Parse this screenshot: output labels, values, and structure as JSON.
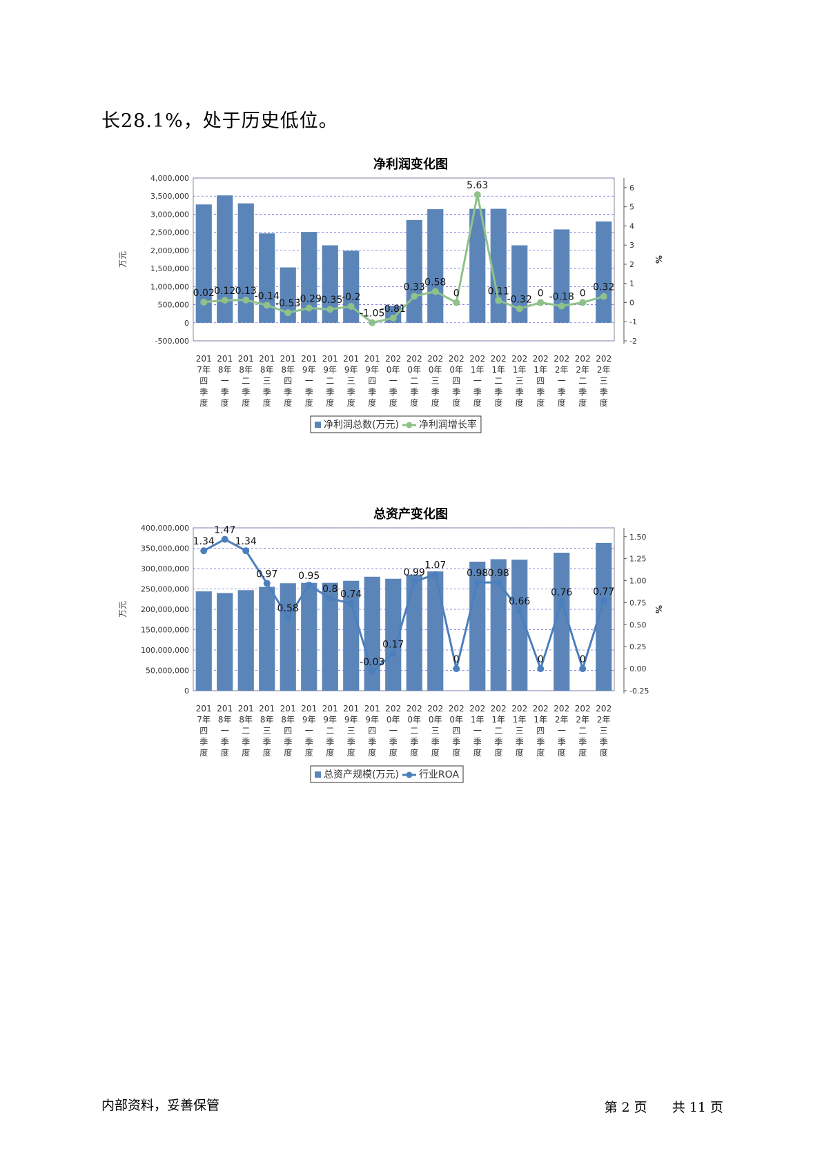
{
  "document": {
    "intro_text": "长28.1%，处于历史低位。",
    "footer_left": "内部资料，妥善保管",
    "footer_page_prefix": "第",
    "footer_page_num": "2",
    "footer_page_unit": "页",
    "footer_total_prefix": "共",
    "footer_total_num": "11",
    "footer_total_unit": "页"
  },
  "colors": {
    "bar": "#5b85b8",
    "line1": "#8fc18a",
    "line2": "#4c7fbd",
    "grid": "#6a6ae0"
  },
  "chart_data": [
    {
      "type": "bar+line",
      "title": "净利润变化图",
      "ylabel_left": "万元",
      "ylabel_right": "%",
      "categories": [
        [
          "201",
          "7年",
          "四",
          "季",
          "度"
        ],
        [
          "201",
          "8年",
          "一",
          "季",
          "度"
        ],
        [
          "201",
          "8年",
          "二",
          "季",
          "度"
        ],
        [
          "201",
          "8年",
          "三",
          "季",
          "度"
        ],
        [
          "201",
          "8年",
          "四",
          "季",
          "度"
        ],
        [
          "201",
          "9年",
          "一",
          "季",
          "度"
        ],
        [
          "201",
          "9年",
          "二",
          "季",
          "度"
        ],
        [
          "201",
          "9年",
          "三",
          "季",
          "度"
        ],
        [
          "201",
          "9年",
          "四",
          "季",
          "度"
        ],
        [
          "202",
          "0年",
          "一",
          "季",
          "度"
        ],
        [
          "202",
          "0年",
          "二",
          "季",
          "度"
        ],
        [
          "202",
          "0年",
          "三",
          "季",
          "度"
        ],
        [
          "202",
          "0年",
          "四",
          "季",
          "度"
        ],
        [
          "202",
          "1年",
          "一",
          "季",
          "度"
        ],
        [
          "202",
          "1年",
          "二",
          "季",
          "度"
        ],
        [
          "202",
          "1年",
          "三",
          "季",
          "度"
        ],
        [
          "202",
          "1年",
          "四",
          "季",
          "度"
        ],
        [
          "202",
          "2年",
          "一",
          "季",
          "度"
        ],
        [
          "202",
          "2年",
          "二",
          "季",
          "度"
        ],
        [
          "202",
          "2年",
          "三",
          "季",
          "度"
        ]
      ],
      "series": [
        {
          "name": "净利润总数(万元)",
          "kind": "bar",
          "values": [
            3270000,
            3520000,
            3300000,
            2470000,
            1530000,
            2510000,
            2140000,
            1990000,
            null,
            470000,
            2840000,
            3140000,
            null,
            3150000,
            3150000,
            2140000,
            null,
            2580000,
            null,
            2800000
          ]
        },
        {
          "name": "净利润增长率",
          "kind": "line",
          "values": [
            0.02,
            0.12,
            0.13,
            -0.14,
            -0.53,
            -0.29,
            -0.35,
            -0.2,
            -1.05,
            -0.81,
            0.33,
            0.58,
            0,
            5.63,
            0.11,
            -0.32,
            0,
            -0.18,
            0,
            0.32
          ],
          "labels": [
            "0.02",
            "0.12",
            "0.13",
            "-0.14",
            "-0.53",
            "-0.29",
            "-0.35",
            "-0.2",
            "-1.05",
            "-0.81",
            "0.33",
            "0.58",
            "0",
            "5.63",
            "0.11",
            "-0.32",
            "0",
            "-0.18",
            "0",
            "0.32"
          ]
        }
      ],
      "y_left": {
        "range": [
          -500000,
          4000000
        ],
        "ticks": [
          "-500,000",
          "0",
          "500,000",
          "1,000,000",
          "1,500,000",
          "2,000,000",
          "2,500,000",
          "3,000,000",
          "3,500,000",
          "4,000,000"
        ],
        "tick_values": [
          -500000,
          0,
          500000,
          1000000,
          1500000,
          2000000,
          2500000,
          3000000,
          3500000,
          4000000
        ]
      },
      "y_right": {
        "range": [
          -2,
          6.5
        ],
        "ticks": [
          "-2",
          "-1",
          "0",
          "1",
          "2",
          "3",
          "4",
          "5",
          "6"
        ],
        "tick_values": [
          -2,
          -1,
          0,
          1,
          2,
          3,
          4,
          5,
          6
        ]
      },
      "grid": true,
      "legend_position": "bottom"
    },
    {
      "type": "bar+line",
      "title": "总资产变化图",
      "ylabel_left": "万元",
      "ylabel_right": "%",
      "categories": [
        [
          "201",
          "7年",
          "四",
          "季",
          "度"
        ],
        [
          "201",
          "8年",
          "一",
          "季",
          "度"
        ],
        [
          "201",
          "8年",
          "二",
          "季",
          "度"
        ],
        [
          "201",
          "8年",
          "三",
          "季",
          "度"
        ],
        [
          "201",
          "8年",
          "四",
          "季",
          "度"
        ],
        [
          "201",
          "9年",
          "一",
          "季",
          "度"
        ],
        [
          "201",
          "9年",
          "二",
          "季",
          "度"
        ],
        [
          "201",
          "9年",
          "三",
          "季",
          "度"
        ],
        [
          "201",
          "9年",
          "四",
          "季",
          "度"
        ],
        [
          "202",
          "0年",
          "一",
          "季",
          "度"
        ],
        [
          "202",
          "0年",
          "二",
          "季",
          "度"
        ],
        [
          "202",
          "0年",
          "三",
          "季",
          "度"
        ],
        [
          "202",
          "0年",
          "四",
          "季",
          "度"
        ],
        [
          "202",
          "1年",
          "一",
          "季",
          "度"
        ],
        [
          "202",
          "1年",
          "二",
          "季",
          "度"
        ],
        [
          "202",
          "1年",
          "三",
          "季",
          "度"
        ],
        [
          "202",
          "1年",
          "四",
          "季",
          "度"
        ],
        [
          "202",
          "2年",
          "一",
          "季",
          "度"
        ],
        [
          "202",
          "2年",
          "二",
          "季",
          "度"
        ],
        [
          "202",
          "2年",
          "三",
          "季",
          "度"
        ]
      ],
      "series": [
        {
          "name": "总资产规模(万元)",
          "kind": "bar",
          "values": [
            244000000,
            240000000,
            247000000,
            255000000,
            264000000,
            265000000,
            265000000,
            270000000,
            280000000,
            275000000,
            285000000,
            293000000,
            null,
            317000000,
            323000000,
            322000000,
            null,
            339000000,
            null,
            363000000
          ]
        },
        {
          "name": "行业ROA",
          "kind": "line",
          "values": [
            1.34,
            1.47,
            1.34,
            0.97,
            0.58,
            0.95,
            0.8,
            0.74,
            -0.03,
            0.17,
            0.99,
            1.07,
            0,
            0.98,
            0.98,
            0.66,
            0,
            0.76,
            0,
            0.77
          ],
          "labels": [
            "1.34",
            "1.47",
            "1.34",
            "0.97",
            "0.58",
            "0.95",
            "0.8",
            "0.74",
            "-0.03",
            "0.17",
            "0.99",
            "1.07",
            "0",
            "0.98",
            "0.98",
            "0.66",
            "0",
            "0.76",
            "0",
            "0.77"
          ]
        }
      ],
      "y_left": {
        "range": [
          0,
          400000000
        ],
        "ticks": [
          "0",
          "50,000,000",
          "100,000,000",
          "150,000,000",
          "200,000,000",
          "250,000,000",
          "300,000,000",
          "350,000,000",
          "400,000,000"
        ],
        "tick_values": [
          0,
          50000000,
          100000000,
          150000000,
          200000000,
          250000000,
          300000000,
          350000000,
          400000000
        ]
      },
      "y_right": {
        "range": [
          -0.25,
          1.6
        ],
        "ticks": [
          "-0.25",
          "0.00",
          "0.25",
          "0.50",
          "0.75",
          "1.00",
          "1.25",
          "1.50"
        ],
        "tick_values": [
          -0.25,
          0,
          0.25,
          0.5,
          0.75,
          1.0,
          1.25,
          1.5
        ]
      },
      "grid": true,
      "legend_position": "bottom"
    }
  ]
}
